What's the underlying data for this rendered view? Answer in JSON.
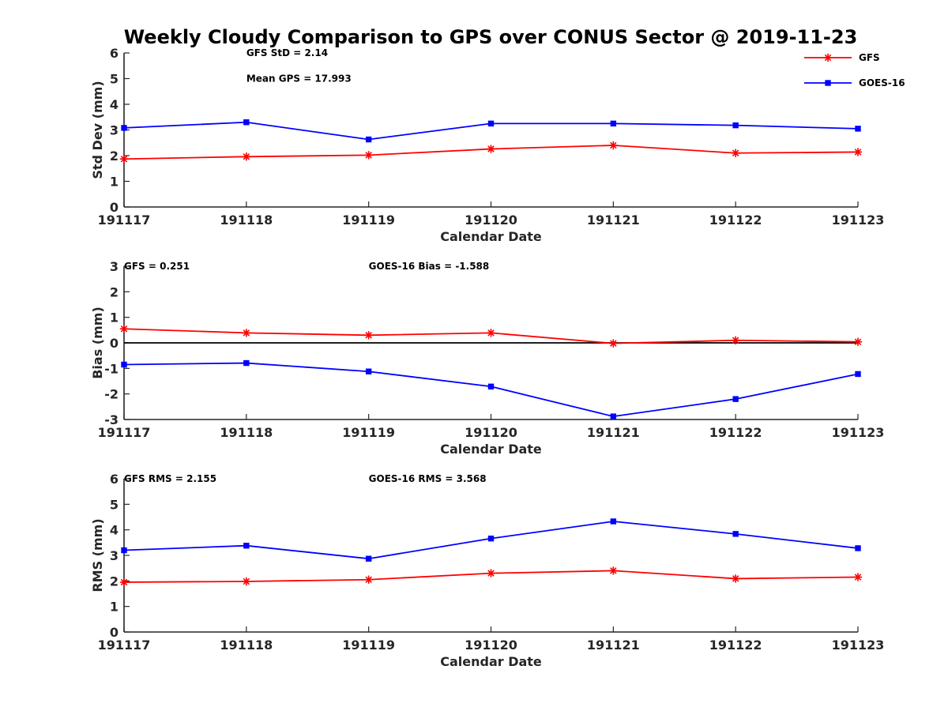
{
  "figure": {
    "title": "Weekly Cloudy Comparison to GPS over CONUS Sector @ 2019-11-23"
  },
  "legend": {
    "placement": "top-right",
    "entries": [
      {
        "label": "GFS",
        "color": "#ff0000",
        "marker": "asterisk"
      },
      {
        "label": "GOES-16",
        "color": "#0000ff",
        "marker": "square"
      }
    ]
  },
  "chart_data": [
    {
      "type": "line",
      "title": "Weekly Cloudy Comparison to GPS over CONUS Sector @ 2019-11-23",
      "xlabel": "Calendar Date",
      "ylabel": "Std Dev (mm)",
      "categories": [
        "191117",
        "191118",
        "191119",
        "191120",
        "191121",
        "191122",
        "191123"
      ],
      "ylim": [
        0,
        6
      ],
      "yticks": [
        "0",
        "1",
        "2",
        "3",
        "4",
        "5",
        "6"
      ],
      "zero_line": false,
      "series": [
        {
          "name": "GFS",
          "color": "#ff0000",
          "marker": "asterisk",
          "values": [
            1.87,
            1.96,
            2.02,
            2.26,
            2.4,
            2.1,
            2.14
          ]
        },
        {
          "name": "GOES-16",
          "color": "#0000ff",
          "marker": "square",
          "values": [
            3.08,
            3.3,
            2.63,
            3.25,
            3.25,
            3.18,
            3.05
          ]
        }
      ],
      "annotations": [
        {
          "text": "GFS StD = 2.14",
          "x": "191118",
          "y": 6.0
        },
        {
          "text": "Mean GPS = 17.993",
          "x": "191118",
          "y": 5.0
        }
      ]
    },
    {
      "type": "line",
      "xlabel": "Calendar Date",
      "ylabel": "Bias (mm)",
      "categories": [
        "191117",
        "191118",
        "191119",
        "191120",
        "191121",
        "191122",
        "191123"
      ],
      "ylim": [
        -3,
        3
      ],
      "yticks": [
        "-3",
        "-2",
        "-1",
        "0",
        "1",
        "2",
        "3"
      ],
      "zero_line": true,
      "series": [
        {
          "name": "GFS",
          "color": "#ff0000",
          "marker": "asterisk",
          "values": [
            0.55,
            0.39,
            0.3,
            0.39,
            -0.02,
            0.1,
            0.04
          ]
        },
        {
          "name": "GOES-16",
          "color": "#0000ff",
          "marker": "square",
          "values": [
            -0.85,
            -0.79,
            -1.12,
            -1.71,
            -2.88,
            -2.2,
            -1.22
          ]
        }
      ],
      "annotations": [
        {
          "text": "GFS = 0.251",
          "x": "191117",
          "y": 3.0
        },
        {
          "text": "GOES-16 Bias  = -1.588",
          "x": "191119",
          "y": 3.0
        }
      ]
    },
    {
      "type": "line",
      "xlabel": "Calendar Date",
      "ylabel": "RMS (mm)",
      "categories": [
        "191117",
        "191118",
        "191119",
        "191120",
        "191121",
        "191122",
        "191123"
      ],
      "ylim": [
        0,
        6
      ],
      "yticks": [
        "0",
        "1",
        "2",
        "3",
        "4",
        "5",
        "6"
      ],
      "zero_line": false,
      "series": [
        {
          "name": "GFS",
          "color": "#ff0000",
          "marker": "asterisk",
          "values": [
            1.95,
            1.98,
            2.05,
            2.3,
            2.4,
            2.09,
            2.15
          ]
        },
        {
          "name": "GOES-16",
          "color": "#0000ff",
          "marker": "square",
          "values": [
            3.2,
            3.38,
            2.87,
            3.66,
            4.33,
            3.84,
            3.28
          ]
        }
      ],
      "annotations": [
        {
          "text": "GFS RMS = 2.155",
          "x": "191117",
          "y": 6.0
        },
        {
          "text": "GOES-16 RMS = 3.568",
          "x": "191119",
          "y": 6.0
        }
      ]
    }
  ]
}
